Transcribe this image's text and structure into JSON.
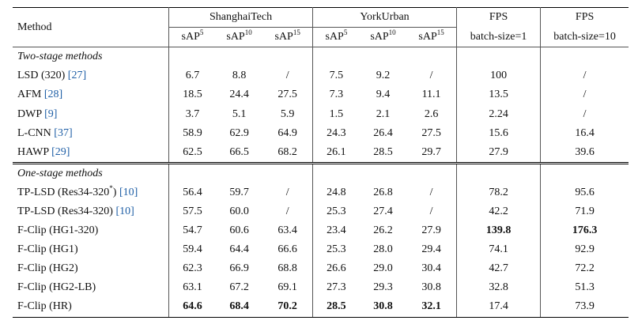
{
  "header": {
    "method": "Method",
    "shanghaitech": "ShanghaiTech",
    "yorkurban": "YorkUrban",
    "fps": "FPS",
    "batch1": "batch-size=1",
    "batch10": "batch-size=10",
    "sap": "sAP",
    "sup5": "5",
    "sup10": "10",
    "sup15": "15"
  },
  "sections": {
    "two_stage": "Two-stage methods",
    "one_stage": "One-stage methods"
  },
  "rows": [
    {
      "name": "LSD (320) ",
      "cite": "[27]",
      "star": "",
      "values": [
        "6.7",
        "8.8",
        "/",
        "7.5",
        "9.2",
        "/",
        "100",
        "/"
      ]
    },
    {
      "name": "AFM ",
      "cite": "[28]",
      "star": "",
      "values": [
        "18.5",
        "24.4",
        "27.5",
        "7.3",
        "9.4",
        "11.1",
        "13.5",
        "/"
      ]
    },
    {
      "name": "DWP ",
      "cite": "[9]",
      "star": "",
      "values": [
        "3.7",
        "5.1",
        "5.9",
        "1.5",
        "2.1",
        "2.6",
        "2.24",
        "/"
      ]
    },
    {
      "name": "L-CNN ",
      "cite": "[37]",
      "star": "",
      "values": [
        "58.9",
        "62.9",
        "64.9",
        "24.3",
        "26.4",
        "27.5",
        "15.6",
        "16.4"
      ]
    },
    {
      "name": "HAWP ",
      "cite": "[29]",
      "star": "",
      "values": [
        "62.5",
        "66.5",
        "68.2",
        "26.1",
        "28.5",
        "29.7",
        "27.9",
        "39.6"
      ]
    },
    {
      "name": "TP-LSD (Res34-320",
      "cite": "[10]",
      "star": "*",
      "values": [
        "56.4",
        "59.7",
        "/",
        "24.8",
        "26.8",
        "/",
        "78.2",
        "95.6"
      ]
    },
    {
      "name": "TP-LSD (Res34-320) ",
      "cite": "[10]",
      "star": "",
      "values": [
        "57.5",
        "60.0",
        "/",
        "25.3",
        "27.4",
        "/",
        "42.2",
        "71.9"
      ]
    },
    {
      "name": "F-Clip (HG1-320)",
      "cite": "",
      "star": "",
      "values": [
        "54.7",
        "60.6",
        "63.4",
        "23.4",
        "26.2",
        "27.9",
        "139.8",
        "176.3"
      ]
    },
    {
      "name": "F-Clip (HG1)",
      "cite": "",
      "star": "",
      "values": [
        "59.4",
        "64.4",
        "66.6",
        "25.3",
        "28.0",
        "29.4",
        "74.1",
        "92.9"
      ]
    },
    {
      "name": "F-Clip (HG2)",
      "cite": "",
      "star": "",
      "values": [
        "62.3",
        "66.9",
        "68.8",
        "26.6",
        "29.0",
        "30.4",
        "42.7",
        "72.2"
      ]
    },
    {
      "name": "F-Clip (HG2-LB)",
      "cite": "",
      "star": "",
      "values": [
        "63.1",
        "67.2",
        "69.1",
        "27.3",
        "29.3",
        "30.8",
        "32.8",
        "51.3"
      ]
    },
    {
      "name": "F-Clip (HR)",
      "cite": "",
      "star": "",
      "values": [
        "64.6",
        "68.4",
        "70.2",
        "28.5",
        "30.8",
        "32.1",
        "17.4",
        "73.9"
      ]
    }
  ],
  "close_paren": ") "
}
